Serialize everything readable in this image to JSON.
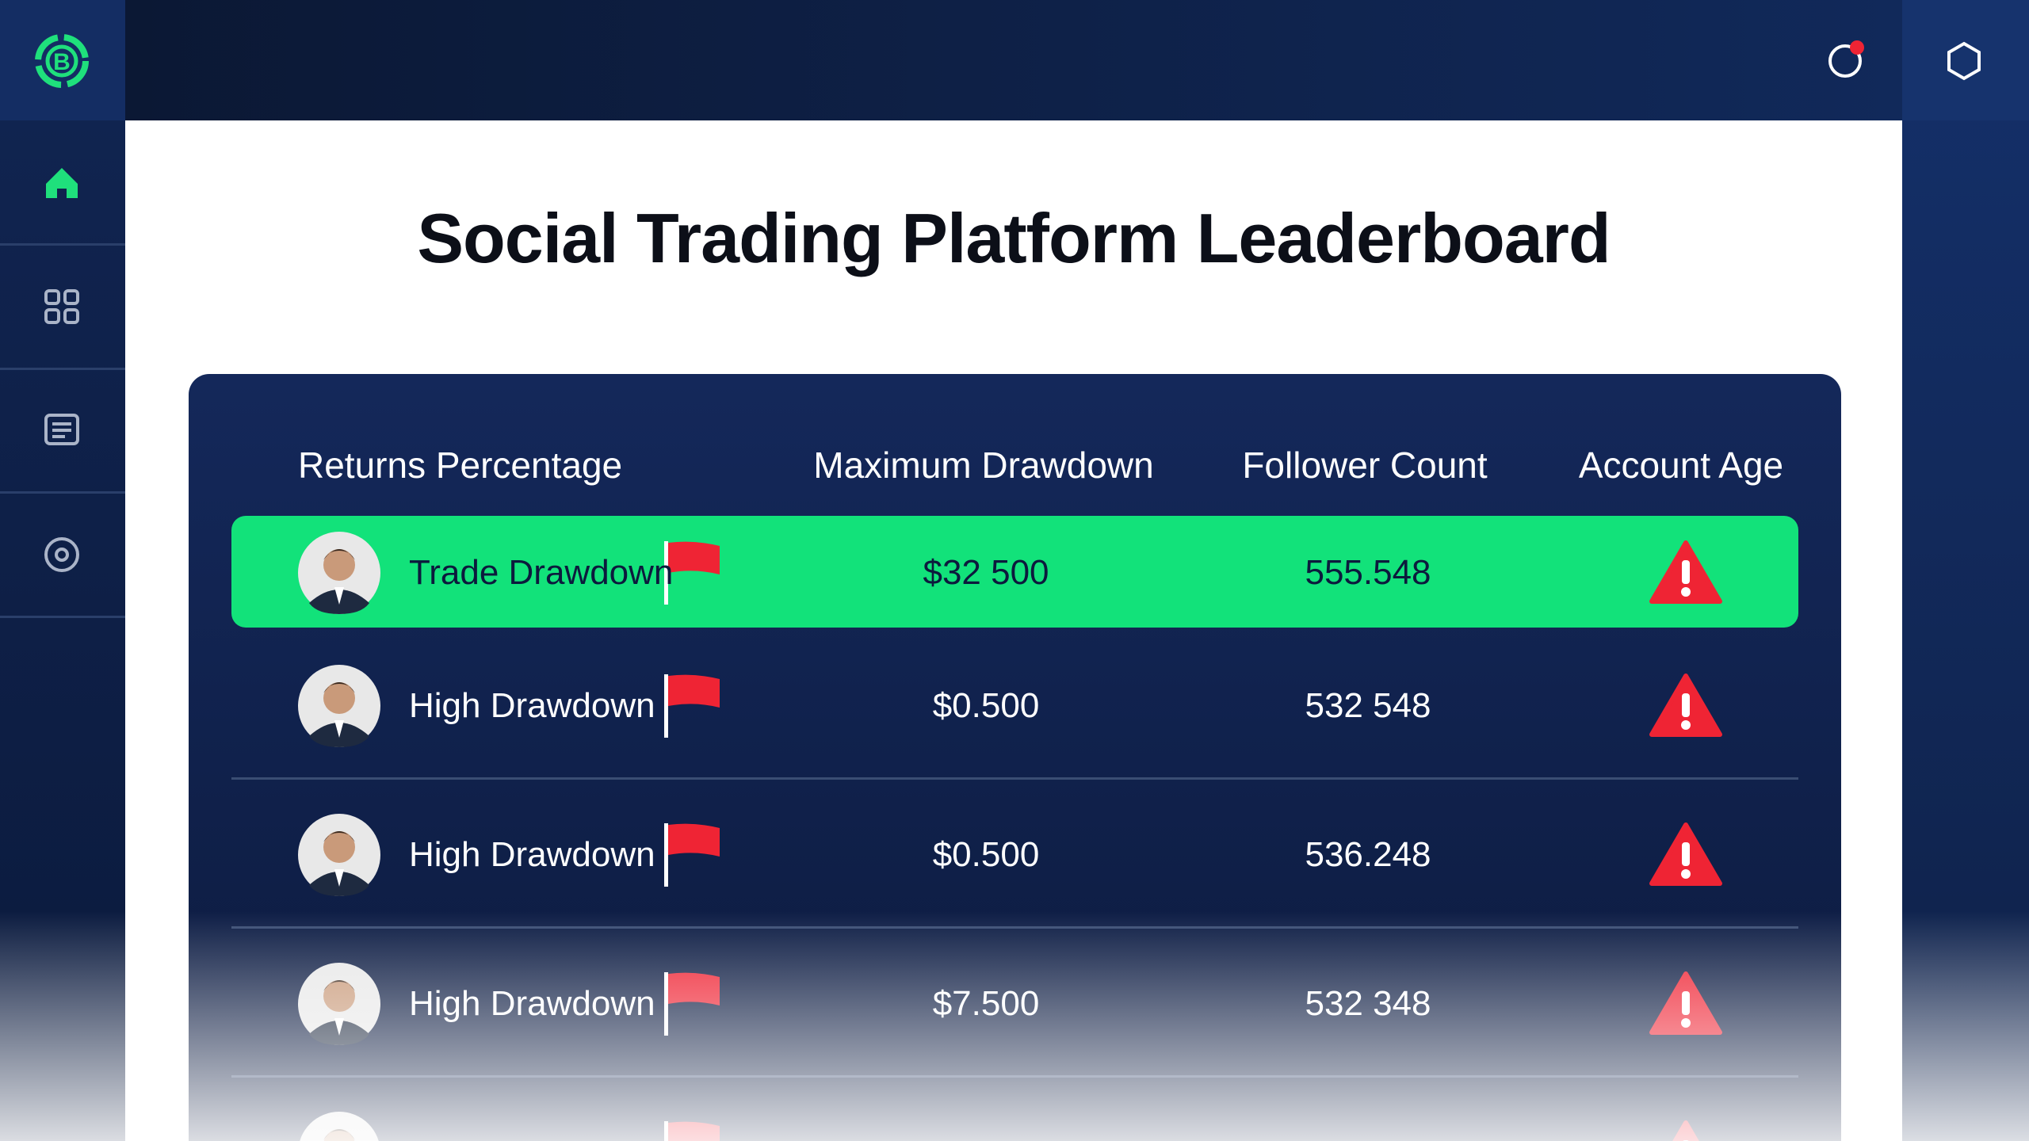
{
  "header": {
    "title": "Social Trading Platform Leaderboard"
  },
  "table": {
    "columns": [
      "Returns Percentage",
      "Maximum Drawdown",
      "Follower Count",
      "Account Age"
    ],
    "rows": [
      {
        "name": "Trade Drawdown",
        "drawdown": "$32 500",
        "followers": "555.548"
      },
      {
        "name": "High Drawdown",
        "drawdown": "$0.500",
        "followers": "532 548"
      },
      {
        "name": "High Drawdown",
        "drawdown": "$0.500",
        "followers": "536.248"
      },
      {
        "name": "High Drawdown",
        "drawdown": "$7.500",
        "followers": "532 348"
      }
    ]
  }
}
